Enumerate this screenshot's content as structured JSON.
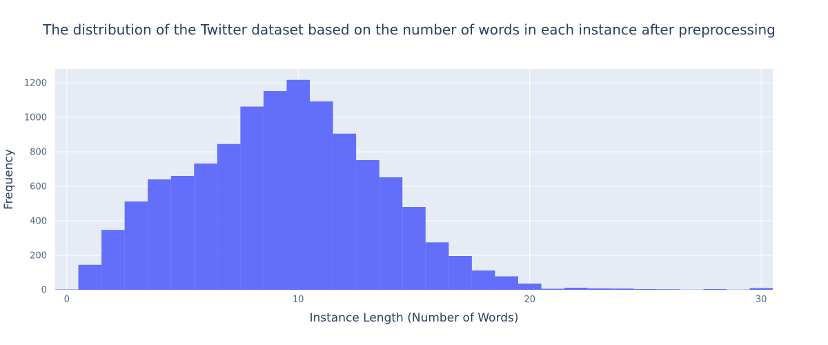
{
  "chart_data": {
    "type": "bar",
    "title": "The distribution of the Twitter dataset based on the number of words in each instance after preprocessing",
    "xlabel": "Instance Length (Number of Words)",
    "ylabel": "Frequency",
    "x": [
      0,
      1,
      2,
      3,
      4,
      5,
      6,
      7,
      8,
      9,
      10,
      11,
      12,
      13,
      14,
      15,
      16,
      17,
      18,
      19,
      20,
      21,
      22,
      23,
      24,
      25,
      26,
      27,
      28,
      29,
      30
    ],
    "values": [
      2,
      145,
      347,
      512,
      640,
      660,
      732,
      845,
      1062,
      1152,
      1217,
      1092,
      905,
      752,
      652,
      480,
      275,
      196,
      112,
      78,
      36,
      6,
      12,
      8,
      7,
      4,
      3,
      1,
      4,
      1,
      10
    ],
    "xlim": [
      -0.5,
      30.5
    ],
    "ylim": [
      0,
      1280
    ],
    "x_ticks": [
      0,
      10,
      20,
      30
    ],
    "y_ticks": [
      0,
      200,
      400,
      600,
      800,
      1000,
      1200
    ],
    "grid": true,
    "bar_color": "#636efa",
    "plot_background": "#e5ecf6",
    "grid_color": "#ffffff"
  }
}
